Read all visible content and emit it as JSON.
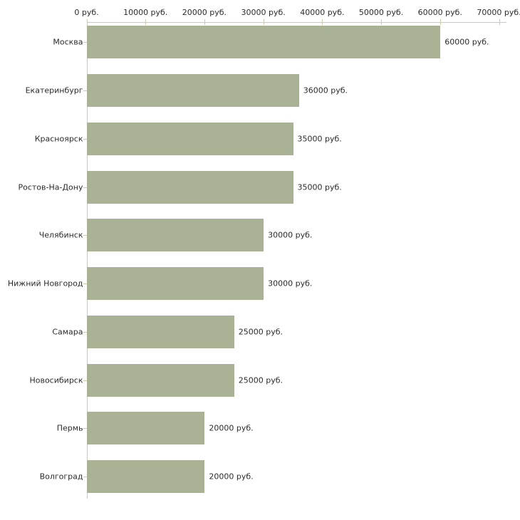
{
  "chart_data": {
    "type": "bar",
    "orientation": "horizontal",
    "title": "",
    "categories": [
      "Москва",
      "Екатеринбург",
      "Красноярск",
      "Ростов-На-Дону",
      "Челябинск",
      "Нижний Новгород",
      "Самара",
      "Новосибирск",
      "Пермь",
      "Волгоград"
    ],
    "values": [
      60000,
      36000,
      35000,
      35000,
      30000,
      30000,
      25000,
      25000,
      20000,
      20000
    ],
    "bar_labels": [
      "60000 руб.",
      "36000 руб.",
      "35000 руб.",
      "35000 руб.",
      "30000 руб.",
      "30000 руб.",
      "25000 руб.",
      "25000 руб.",
      "20000 руб.",
      "20000 руб."
    ],
    "x_ticks": [
      {
        "value": 0,
        "label": "0 руб."
      },
      {
        "value": 10000,
        "label": "10000 руб."
      },
      {
        "value": 20000,
        "label": "20000 руб."
      },
      {
        "value": 30000,
        "label": "30000 руб."
      },
      {
        "value": 40000,
        "label": "40000 руб."
      },
      {
        "value": 50000,
        "label": "50000 руб."
      },
      {
        "value": 60000,
        "label": "60000 руб."
      },
      {
        "value": 70000,
        "label": "70000 руб."
      }
    ],
    "xlim": [
      0,
      70000
    ],
    "unit": "руб.",
    "grid": false,
    "legend": "none",
    "colors": {
      "bar": "#aab296",
      "axis_line": "#c9c9c9",
      "tick": "#d0cbaa",
      "text": "#2b2b2b",
      "background": "#ffffff"
    }
  }
}
